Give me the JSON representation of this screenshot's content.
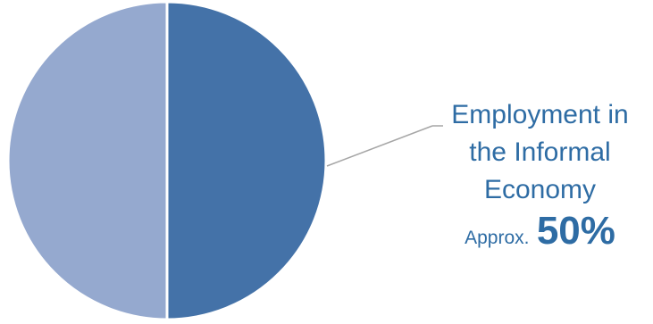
{
  "chart_data": {
    "type": "pie",
    "slices": [
      {
        "label": "Employment in the Informal Economy",
        "value": 50,
        "color": "#4472A8"
      },
      {
        "label": "",
        "value": 50,
        "color": "#95A9CF"
      }
    ],
    "annotation": {
      "label_lines": [
        "Employment in",
        "the Informal",
        "Economy"
      ],
      "qualifier": "Approx.",
      "value_text": "50%"
    },
    "colors": {
      "leader_line": "#A6A6A6",
      "label_text": "#2E6CA4"
    }
  }
}
